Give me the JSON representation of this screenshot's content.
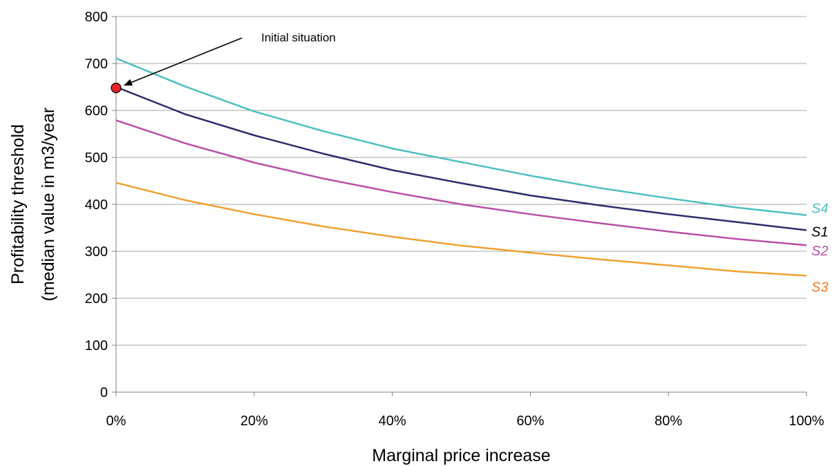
{
  "chart_data": {
    "type": "line",
    "xlabel": "Marginal price increase",
    "ylabel_line1": "Profitability threshold",
    "ylabel_line2": "(median value in m3/year",
    "x": [
      0,
      10,
      20,
      30,
      40,
      50,
      60,
      70,
      80,
      90,
      100
    ],
    "x_tick_values": [
      0,
      20,
      40,
      60,
      80,
      100
    ],
    "x_tick_labels": [
      "0%",
      "20%",
      "40%",
      "60%",
      "80%",
      "100%"
    ],
    "xlim": [
      0,
      100
    ],
    "y_ticks": [
      0,
      100,
      200,
      300,
      400,
      500,
      600,
      700,
      800
    ],
    "ylim": [
      0,
      800
    ],
    "grid": true,
    "series": [
      {
        "name": "S4",
        "color": "#4bbfc0",
        "values": [
          711,
          651,
          598,
          556,
          519,
          490,
          461,
          435,
          413,
          393,
          377
        ]
      },
      {
        "name": "S1",
        "color": "#2b2b6b",
        "label_color": "#000000",
        "values": [
          650,
          592,
          547,
          508,
          473,
          445,
          419,
          398,
          379,
          362,
          345
        ]
      },
      {
        "name": "S2",
        "color": "#b84fa6",
        "values": [
          579,
          530,
          489,
          455,
          426,
          400,
          379,
          360,
          342,
          326,
          313
        ]
      },
      {
        "name": "S3",
        "color": "#f0a030",
        "label_color": "#ee7a22",
        "values": [
          446,
          409,
          379,
          353,
          331,
          312,
          297,
          283,
          270,
          257,
          248
        ]
      }
    ],
    "annotation": {
      "text": "Initial situation",
      "point": {
        "x": 0,
        "y": 648
      },
      "marker_color": "#e8212a"
    }
  }
}
